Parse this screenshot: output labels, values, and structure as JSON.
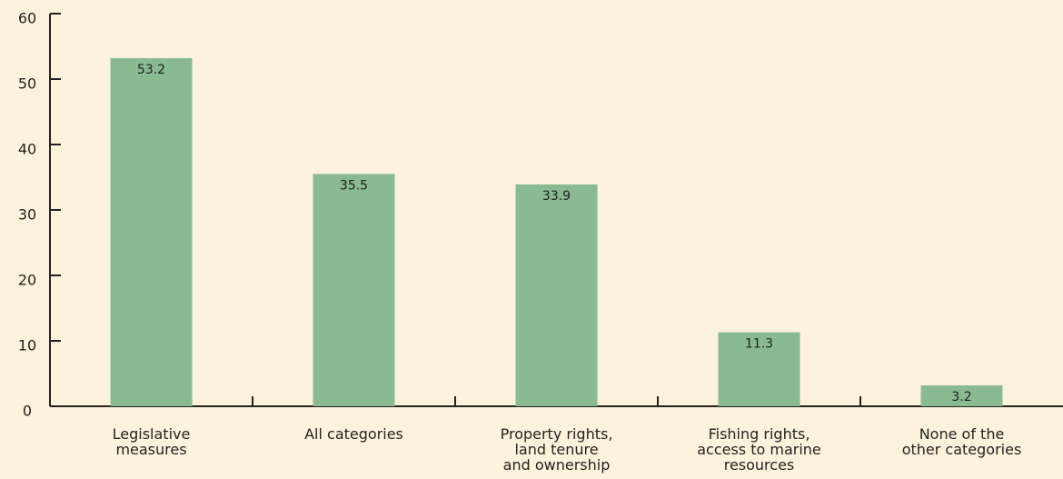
{
  "chart_data": {
    "type": "bar",
    "categories": [
      "Legislative\nmeasures",
      "All categories",
      "Property rights,\nland tenure\nand ownership",
      "Fishing rights,\naccess to marine\nresources",
      "None of the\nother categories"
    ],
    "values": [
      53.2,
      35.5,
      33.9,
      11.3,
      3.2
    ],
    "color": "#8aba91",
    "ylim": [
      0,
      60
    ],
    "yticks": [
      0,
      10,
      20,
      30,
      40,
      50,
      60
    ],
    "grid": false
  }
}
